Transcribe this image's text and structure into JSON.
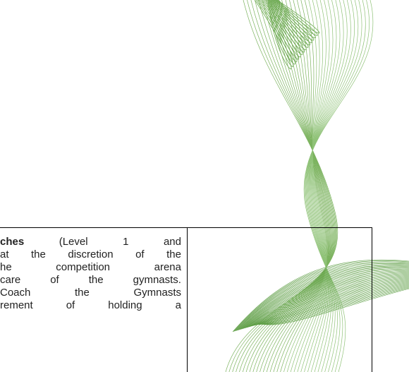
{
  "document": {
    "cell": {
      "bold": "ches",
      "lines": [
        "(Level 1 and",
        "at the discretion of the",
        "he competition arena",
        "care of the gymnasts.",
        "Coach the Gymnasts",
        "rement of holding a"
      ]
    }
  }
}
